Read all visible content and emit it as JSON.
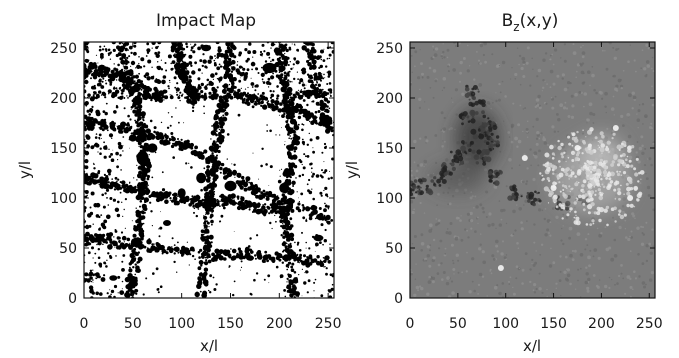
{
  "chart_data": [
    {
      "type": "heatmap",
      "title": "Impact Map",
      "xlabel": "x/l",
      "ylabel": "y/l",
      "xlim": [
        0,
        256
      ],
      "ylim": [
        0,
        256
      ],
      "xticks": [
        "0",
        "50",
        "100",
        "150",
        "200",
        "250"
      ],
      "yticks": [
        "0",
        "50",
        "100",
        "150",
        "200",
        "250"
      ],
      "colormap": "binary (black / white)",
      "background_color": "#ffffff",
      "mark_color": "#000000"
    },
    {
      "type": "heatmap",
      "title": "B_z(x,y)",
      "title_parts": {
        "base": "B",
        "sub": "z",
        "rest": "(x,y)"
      },
      "xlabel": "x/l",
      "ylabel": "y/l",
      "xlim": [
        0,
        256
      ],
      "ylim": [
        0,
        256
      ],
      "xticks": [
        "0",
        "50",
        "100",
        "150",
        "200",
        "250"
      ],
      "yticks": [
        "0",
        "50",
        "100",
        "150",
        "200",
        "250"
      ],
      "colormap": "grayscale",
      "background_color": "#7c7c7c",
      "dark_region_center": [
        70,
        160
      ],
      "bright_region_center": [
        190,
        120
      ]
    }
  ]
}
